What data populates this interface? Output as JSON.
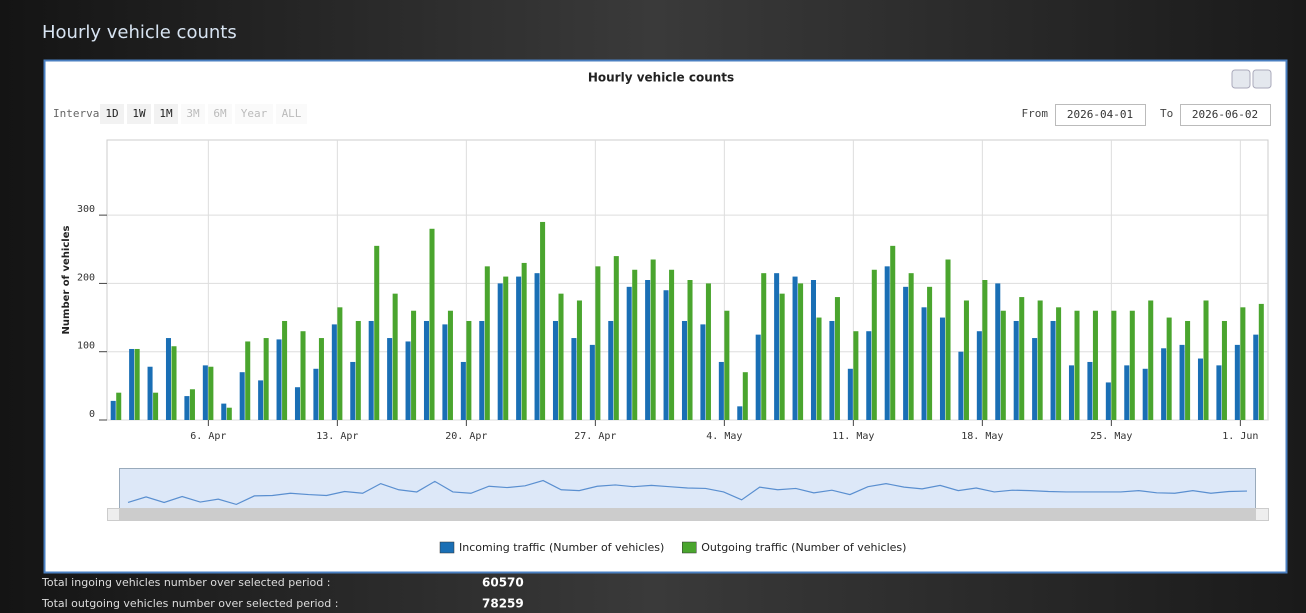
{
  "header": {
    "title": "Hourly vehicle counts"
  },
  "controls": {
    "interval_label": "Interval",
    "intervals": [
      "1D",
      "1W",
      "1M",
      "3M",
      "6M",
      "Year",
      "ALL"
    ],
    "enabled": [
      true,
      true,
      true,
      false,
      false,
      false,
      false
    ],
    "from_label": "From",
    "from": "2026-04-01",
    "to_label": "To",
    "to": "2026-06-02"
  },
  "chart_data": {
    "type": "bar",
    "title": "Hourly vehicle counts",
    "y_label": "Number of vehicles",
    "categories": [
      null,
      null,
      null,
      null,
      null,
      "6. Apr",
      null,
      null,
      null,
      null,
      null,
      null,
      "13. Apr",
      null,
      null,
      null,
      null,
      null,
      null,
      "20. Apr",
      null,
      null,
      null,
      null,
      null,
      null,
      "27. Apr",
      null,
      null,
      null,
      null,
      null,
      null,
      "4. May",
      null,
      null,
      null,
      null,
      null,
      null,
      "11. May",
      null,
      null,
      null,
      null,
      null,
      null,
      "18. May",
      null,
      null,
      null,
      null,
      null,
      null,
      "25. May",
      null,
      null,
      null,
      null,
      null,
      null,
      "1. Jun",
      null
    ],
    "series": [
      {
        "name": "Incoming traffic (Number of vehicles)",
        "color": "#1a6fb5",
        "values": [
          28,
          104,
          78,
          120,
          35,
          80,
          24,
          70,
          58,
          118,
          48,
          75,
          140,
          85,
          145,
          120,
          115,
          145,
          140,
          85,
          145,
          200,
          210,
          215,
          145,
          120,
          110,
          145,
          195,
          205,
          190,
          145,
          140,
          85,
          20,
          125,
          215,
          210,
          205,
          145,
          75,
          130,
          225,
          195,
          165,
          150,
          100,
          130,
          200,
          145,
          120,
          145,
          80,
          85,
          55,
          80,
          75,
          105,
          110,
          90,
          80,
          110,
          125
        ]
      },
      {
        "name": "Outgoing traffic (Number of vehicles)",
        "color": "#4aa52e",
        "values": [
          40,
          104,
          40,
          108,
          45,
          78,
          18,
          115,
          120,
          145,
          130,
          120,
          165,
          145,
          255,
          185,
          160,
          280,
          160,
          145,
          225,
          210,
          230,
          290,
          185,
          175,
          225,
          240,
          220,
          235,
          220,
          205,
          200,
          160,
          70,
          215,
          185,
          200,
          150,
          180,
          130,
          220,
          255,
          215,
          195,
          235,
          175,
          205,
          160,
          180,
          175,
          165,
          160,
          160,
          160,
          160,
          175,
          150,
          145,
          175,
          145,
          165,
          170
        ]
      }
    ],
    "ylim": [
      0,
      410
    ],
    "yticks": [
      0,
      100,
      200,
      300
    ],
    "grid": true
  },
  "summary": {
    "rows": [
      [
        "Total ingoing vehicles number over selected period :",
        "60570"
      ],
      [
        "Total outgoing vehicles number over selected period :",
        "78259"
      ]
    ]
  }
}
